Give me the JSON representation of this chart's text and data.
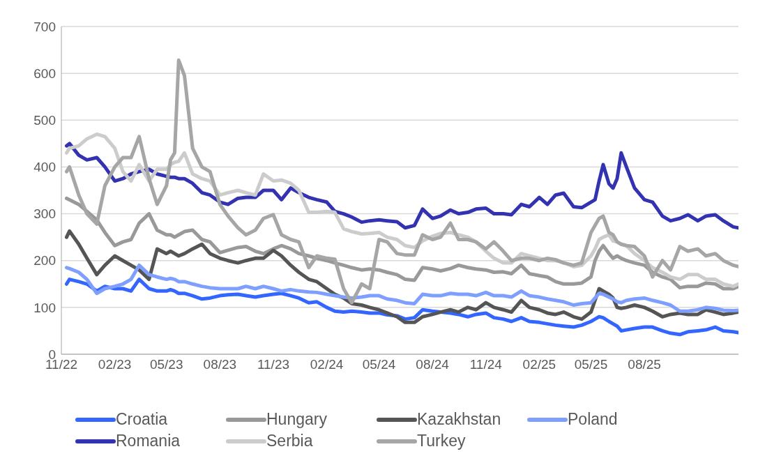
{
  "chart_data": {
    "type": "line",
    "x": [
      "2022-11-10",
      "2022-11-15",
      "2022-12-01",
      "2022-12-15",
      "2023-01-01",
      "2023-01-15",
      "2023-02-01",
      "2023-02-15",
      "2023-03-01",
      "2023-03-15",
      "2023-04-01",
      "2023-04-15",
      "2023-05-01",
      "2023-05-08",
      "2023-05-15",
      "2023-05-22",
      "2023-06-01",
      "2023-06-15",
      "2023-07-01",
      "2023-07-15",
      "2023-08-01",
      "2023-08-15",
      "2023-09-01",
      "2023-09-15",
      "2023-10-01",
      "2023-10-15",
      "2023-11-01",
      "2023-11-15",
      "2023-12-01",
      "2023-12-15",
      "2024-01-01",
      "2024-01-15",
      "2024-02-01",
      "2024-02-15",
      "2024-03-01",
      "2024-03-15",
      "2024-04-01",
      "2024-04-15",
      "2024-05-01",
      "2024-05-15",
      "2024-06-01",
      "2024-06-15",
      "2024-07-01",
      "2024-07-15",
      "2024-08-01",
      "2024-08-15",
      "2024-09-01",
      "2024-09-15",
      "2024-10-01",
      "2024-10-15",
      "2024-11-01",
      "2024-11-15",
      "2024-12-01",
      "2024-12-15",
      "2025-01-01",
      "2025-01-15",
      "2025-02-01",
      "2025-02-15",
      "2025-03-01",
      "2025-03-15",
      "2025-04-01",
      "2025-04-15",
      "2025-05-01",
      "2025-05-08",
      "2025-05-15",
      "2025-05-22",
      "2025-06-01",
      "2025-06-08",
      "2025-06-15",
      "2025-06-22",
      "2025-07-01",
      "2025-07-15",
      "2025-08-01",
      "2025-08-15",
      "2025-09-01",
      "2025-09-15",
      "2025-10-01",
      "2025-10-15",
      "2025-11-01",
      "2025-11-15",
      "2025-12-01",
      "2025-12-15",
      "2026-01-01",
      "2026-01-10"
    ],
    "series": [
      {
        "name": "Croatia",
        "color": "#3366ff",
        "values": [
          150,
          160,
          155,
          150,
          135,
          145,
          140,
          140,
          135,
          160,
          140,
          135,
          135,
          138,
          135,
          130,
          130,
          125,
          118,
          120,
          125,
          127,
          128,
          125,
          122,
          125,
          128,
          130,
          125,
          120,
          110,
          112,
          100,
          92,
          90,
          92,
          90,
          88,
          88,
          84,
          82,
          75,
          78,
          95,
          92,
          90,
          88,
          85,
          80,
          85,
          88,
          78,
          75,
          70,
          78,
          70,
          68,
          65,
          62,
          60,
          58,
          62,
          70,
          75,
          80,
          78,
          70,
          65,
          60,
          50,
          52,
          55,
          58,
          58,
          50,
          45,
          42,
          48,
          50,
          52,
          58,
          50,
          48,
          46
        ]
      },
      {
        "name": "Hungary",
        "color": "#999999",
        "values": [
          333,
          330,
          320,
          305,
          287,
          260,
          232,
          240,
          245,
          280,
          300,
          265,
          255,
          255,
          250,
          255,
          262,
          265,
          245,
          240,
          217,
          222,
          228,
          230,
          220,
          215,
          225,
          232,
          225,
          215,
          210,
          205,
          200,
          195,
          190,
          185,
          180,
          182,
          180,
          175,
          170,
          160,
          158,
          185,
          182,
          178,
          183,
          190,
          185,
          182,
          180,
          175,
          176,
          172,
          190,
          172,
          168,
          165,
          155,
          150,
          150,
          152,
          165,
          200,
          220,
          232,
          215,
          205,
          210,
          205,
          200,
          195,
          190,
          175,
          165,
          160,
          142,
          145,
          145,
          152,
          150,
          140,
          140,
          145
        ]
      },
      {
        "name": "Kazakhstan",
        "color": "#555555",
        "values": [
          250,
          263,
          235,
          205,
          170,
          190,
          210,
          200,
          190,
          180,
          160,
          225,
          215,
          220,
          215,
          210,
          215,
          225,
          235,
          215,
          205,
          200,
          195,
          200,
          205,
          205,
          222,
          210,
          190,
          175,
          160,
          155,
          140,
          128,
          120,
          108,
          105,
          100,
          95,
          88,
          80,
          68,
          68,
          80,
          85,
          90,
          95,
          90,
          100,
          95,
          110,
          100,
          95,
          90,
          115,
          100,
          95,
          88,
          85,
          90,
          80,
          75,
          90,
          115,
          140,
          135,
          128,
          120,
          100,
          98,
          100,
          105,
          100,
          92,
          80,
          85,
          88,
          85,
          85,
          95,
          90,
          85,
          88,
          90
        ]
      },
      {
        "name": "Poland",
        "color": "#7f9fff",
        "values": [
          185,
          183,
          175,
          160,
          130,
          140,
          145,
          150,
          160,
          190,
          170,
          165,
          160,
          162,
          160,
          155,
          155,
          150,
          145,
          142,
          140,
          140,
          140,
          145,
          140,
          145,
          140,
          135,
          138,
          135,
          133,
          132,
          128,
          125,
          122,
          120,
          122,
          125,
          125,
          118,
          115,
          110,
          108,
          128,
          125,
          125,
          130,
          128,
          128,
          125,
          132,
          125,
          125,
          122,
          135,
          125,
          122,
          118,
          115,
          112,
          105,
          108,
          110,
          120,
          130,
          128,
          122,
          118,
          112,
          110,
          115,
          118,
          120,
          115,
          110,
          105,
          92,
          92,
          95,
          100,
          98,
          94,
          93,
          94
        ]
      },
      {
        "name": "Romania",
        "color": "#3333b2",
        "values": [
          445,
          450,
          425,
          415,
          420,
          400,
          370,
          375,
          385,
          390,
          395,
          385,
          380,
          378,
          378,
          375,
          375,
          365,
          345,
          340,
          325,
          320,
          333,
          335,
          335,
          350,
          350,
          330,
          355,
          345,
          335,
          330,
          325,
          305,
          300,
          293,
          282,
          285,
          287,
          285,
          283,
          270,
          275,
          310,
          290,
          295,
          308,
          300,
          303,
          310,
          312,
          300,
          300,
          298,
          320,
          315,
          335,
          320,
          340,
          344,
          315,
          313,
          325,
          330,
          370,
          405,
          364,
          355,
          375,
          430,
          400,
          355,
          330,
          325,
          295,
          285,
          290,
          298,
          285,
          295,
          298,
          285,
          272,
          270
        ]
      },
      {
        "name": "Serbia",
        "color": "#cccccc",
        "values": [
          430,
          440,
          445,
          460,
          470,
          465,
          440,
          390,
          370,
          405,
          370,
          395,
          395,
          405,
          410,
          412,
          430,
          385,
          375,
          370,
          340,
          345,
          350,
          345,
          340,
          385,
          370,
          372,
          365,
          350,
          303,
          303,
          305,
          303,
          268,
          262,
          257,
          258,
          260,
          250,
          245,
          232,
          228,
          242,
          252,
          258,
          260,
          255,
          250,
          240,
          220,
          205,
          195,
          195,
          215,
          210,
          205,
          200,
          200,
          196,
          187,
          190,
          210,
          225,
          245,
          250,
          255,
          242,
          240,
          235,
          232,
          215,
          200,
          185,
          175,
          165,
          160,
          170,
          170,
          160,
          160,
          150,
          145,
          150
        ]
      },
      {
        "name": "Turkey",
        "color": "#a6a6a6",
        "values": [
          390,
          400,
          340,
          300,
          278,
          360,
          400,
          420,
          420,
          465,
          375,
          320,
          360,
          415,
          430,
          628,
          595,
          440,
          400,
          390,
          320,
          295,
          270,
          255,
          265,
          290,
          298,
          255,
          245,
          240,
          185,
          210,
          205,
          203,
          140,
          110,
          150,
          140,
          245,
          240,
          215,
          212,
          212,
          255,
          245,
          250,
          280,
          245,
          245,
          240,
          225,
          240,
          220,
          200,
          205,
          205,
          200,
          205,
          202,
          195,
          190,
          195,
          260,
          275,
          290,
          295,
          260,
          255,
          240,
          235,
          232,
          230,
          210,
          165,
          200,
          180,
          230,
          220,
          225,
          210,
          215,
          200,
          190,
          187
        ]
      }
    ],
    "xlim": [
      "2022-11-01",
      "2026-01-10"
    ],
    "xticks": [
      {
        "value": "2022-11-01",
        "label": "11/22"
      },
      {
        "value": "2023-02-01",
        "label": "02/23"
      },
      {
        "value": "2023-05-01",
        "label": "05/23"
      },
      {
        "value": "2023-08-01",
        "label": "08/23"
      },
      {
        "value": "2023-11-01",
        "label": "11/23"
      },
      {
        "value": "2024-02-01",
        "label": "02/24"
      },
      {
        "value": "2024-05-01",
        "label": "05/24"
      },
      {
        "value": "2024-08-01",
        "label": "08/24"
      },
      {
        "value": "2024-11-01",
        "label": "11/24"
      },
      {
        "value": "2025-02-01",
        "label": "02/25"
      },
      {
        "value": "2025-05-01",
        "label": "05/25"
      },
      {
        "value": "2025-08-01",
        "label": "08/25"
      }
    ],
    "ylim": [
      0,
      700
    ],
    "yticks": [
      0,
      100,
      200,
      300,
      400,
      500,
      600,
      700
    ],
    "grid": "y",
    "legend": "bottom",
    "marker": "none",
    "line_style": "solid"
  }
}
